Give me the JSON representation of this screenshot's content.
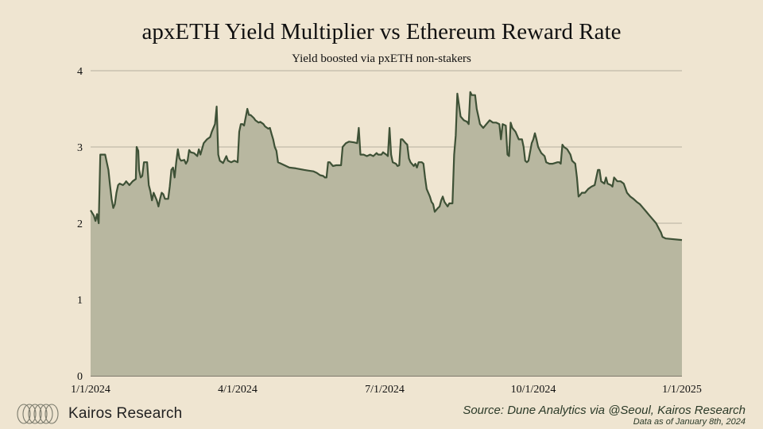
{
  "chart_data": {
    "type": "area",
    "title": "apxETH Yield Multiplier vs Ethereum Reward Rate",
    "subtitle": "Yield boosted via pxETH non-stakers",
    "xlabel": "",
    "ylabel": "",
    "ylim": [
      0,
      4
    ],
    "yticks": [
      "0",
      "1",
      "2",
      "3",
      "4"
    ],
    "xlim_days": [
      0,
      366
    ],
    "xticks": [
      {
        "day": 0,
        "label": "1/1/2024"
      },
      {
        "day": 91,
        "label": "4/1/2024"
      },
      {
        "day": 182,
        "label": "7/1/2024"
      },
      {
        "day": 274,
        "label": "10/1/2024"
      },
      {
        "day": 366,
        "label": "1/1/2025"
      }
    ],
    "grid": true,
    "line_color": "#3e5136",
    "fill_color": "#b8b7a0",
    "series": [
      {
        "name": "Yield Multiplier",
        "x_unit": "days since 1/1/2024",
        "points": [
          [
            0,
            2.17
          ],
          [
            2,
            2.1
          ],
          [
            3,
            2.03
          ],
          [
            4,
            2.12
          ],
          [
            5,
            2.0
          ],
          [
            6,
            2.9
          ],
          [
            8,
            2.9
          ],
          [
            9,
            2.9
          ],
          [
            10,
            2.8
          ],
          [
            11,
            2.7
          ],
          [
            12,
            2.5
          ],
          [
            13,
            2.32
          ],
          [
            14,
            2.2
          ],
          [
            15,
            2.25
          ],
          [
            16,
            2.4
          ],
          [
            17,
            2.5
          ],
          [
            18,
            2.52
          ],
          [
            20,
            2.5
          ],
          [
            21,
            2.52
          ],
          [
            22,
            2.55
          ],
          [
            24,
            2.5
          ],
          [
            26,
            2.55
          ],
          [
            28,
            2.58
          ],
          [
            28.5,
            3.0
          ],
          [
            29.5,
            2.95
          ],
          [
            30,
            2.7
          ],
          [
            31,
            2.6
          ],
          [
            32,
            2.62
          ],
          [
            33,
            2.8
          ],
          [
            35,
            2.8
          ],
          [
            36,
            2.5
          ],
          [
            37,
            2.42
          ],
          [
            38,
            2.3
          ],
          [
            39,
            2.4
          ],
          [
            40,
            2.35
          ],
          [
            41,
            2.3
          ],
          [
            42,
            2.22
          ],
          [
            43,
            2.32
          ],
          [
            44,
            2.4
          ],
          [
            45,
            2.38
          ],
          [
            46,
            2.32
          ],
          [
            48,
            2.32
          ],
          [
            49,
            2.48
          ],
          [
            50,
            2.7
          ],
          [
            51,
            2.73
          ],
          [
            52,
            2.6
          ],
          [
            53,
            2.8
          ],
          [
            54,
            2.97
          ],
          [
            55,
            2.85
          ],
          [
            56,
            2.82
          ],
          [
            58,
            2.83
          ],
          [
            59,
            2.78
          ],
          [
            60,
            2.82
          ],
          [
            61,
            2.96
          ],
          [
            62,
            2.93
          ],
          [
            64,
            2.92
          ],
          [
            66,
            2.88
          ],
          [
            67,
            2.97
          ],
          [
            68,
            2.9
          ],
          [
            70,
            3.05
          ],
          [
            72,
            3.1
          ],
          [
            74,
            3.13
          ],
          [
            75,
            3.2
          ],
          [
            77,
            3.3
          ],
          [
            78,
            3.53
          ],
          [
            79,
            2.9
          ],
          [
            80,
            2.82
          ],
          [
            82,
            2.79
          ],
          [
            84,
            2.88
          ],
          [
            85,
            2.82
          ],
          [
            87,
            2.8
          ],
          [
            89,
            2.82
          ],
          [
            91,
            2.8
          ],
          [
            92,
            3.2
          ],
          [
            93,
            3.3
          ],
          [
            94,
            3.3
          ],
          [
            95,
            3.28
          ],
          [
            97,
            3.5
          ],
          [
            98,
            3.42
          ],
          [
            99,
            3.42
          ],
          [
            101,
            3.38
          ],
          [
            102,
            3.35
          ],
          [
            104,
            3.32
          ],
          [
            105,
            3.33
          ],
          [
            107,
            3.3
          ],
          [
            108,
            3.27
          ],
          [
            110,
            3.24
          ],
          [
            111,
            3.25
          ],
          [
            112,
            3.17
          ],
          [
            113,
            3.1
          ],
          [
            114,
            3.0
          ],
          [
            115,
            2.95
          ],
          [
            116,
            2.8
          ],
          [
            118,
            2.78
          ],
          [
            120,
            2.76
          ],
          [
            123,
            2.73
          ],
          [
            127,
            2.72
          ],
          [
            132,
            2.7
          ],
          [
            135,
            2.69
          ],
          [
            138,
            2.68
          ],
          [
            140,
            2.66
          ],
          [
            142,
            2.63
          ],
          [
            144,
            2.62
          ],
          [
            145,
            2.6
          ],
          [
            146,
            2.6
          ],
          [
            147,
            2.8
          ],
          [
            148,
            2.8
          ],
          [
            150,
            2.75
          ],
          [
            152,
            2.76
          ],
          [
            155,
            2.76
          ],
          [
            156,
            3.0
          ],
          [
            158,
            3.05
          ],
          [
            160,
            3.07
          ],
          [
            163,
            3.06
          ],
          [
            165,
            3.05
          ],
          [
            166,
            3.25
          ],
          [
            167,
            2.9
          ],
          [
            169,
            2.9
          ],
          [
            171,
            2.88
          ],
          [
            173,
            2.9
          ],
          [
            175,
            2.88
          ],
          [
            177,
            2.92
          ],
          [
            178,
            2.9
          ],
          [
            180,
            2.9
          ],
          [
            181,
            2.93
          ],
          [
            183,
            2.9
          ],
          [
            184,
            2.88
          ],
          [
            185,
            3.25
          ],
          [
            186,
            2.9
          ],
          [
            187,
            2.8
          ],
          [
            189,
            2.78
          ],
          [
            190,
            2.75
          ],
          [
            191,
            2.76
          ],
          [
            192,
            3.1
          ],
          [
            193,
            3.1
          ],
          [
            195,
            3.05
          ],
          [
            196,
            3.03
          ],
          [
            197,
            2.85
          ],
          [
            198,
            2.8
          ],
          [
            200,
            2.75
          ],
          [
            201,
            2.78
          ],
          [
            202,
            2.73
          ],
          [
            203,
            2.8
          ],
          [
            205,
            2.8
          ],
          [
            206,
            2.78
          ],
          [
            207,
            2.6
          ],
          [
            208,
            2.45
          ],
          [
            210,
            2.35
          ],
          [
            211,
            2.28
          ],
          [
            212,
            2.25
          ],
          [
            213,
            2.15
          ],
          [
            215,
            2.2
          ],
          [
            216,
            2.22
          ],
          [
            217,
            2.3
          ],
          [
            218,
            2.35
          ],
          [
            219,
            2.28
          ],
          [
            220,
            2.25
          ],
          [
            221,
            2.22
          ],
          [
            222,
            2.26
          ],
          [
            224,
            2.26
          ],
          [
            225,
            2.9
          ],
          [
            226,
            3.15
          ],
          [
            227,
            3.7
          ],
          [
            228,
            3.55
          ],
          [
            229,
            3.4
          ],
          [
            231,
            3.35
          ],
          [
            233,
            3.33
          ],
          [
            234,
            3.3
          ],
          [
            235,
            3.72
          ],
          [
            236,
            3.68
          ],
          [
            238,
            3.68
          ],
          [
            239,
            3.5
          ],
          [
            240,
            3.4
          ],
          [
            241,
            3.3
          ],
          [
            243,
            3.25
          ],
          [
            245,
            3.3
          ],
          [
            247,
            3.35
          ],
          [
            249,
            3.32
          ],
          [
            251,
            3.32
          ],
          [
            253,
            3.3
          ],
          [
            254,
            3.1
          ],
          [
            255,
            3.3
          ],
          [
            257,
            3.28
          ],
          [
            258,
            2.9
          ],
          [
            259,
            2.88
          ],
          [
            260,
            3.32
          ],
          [
            261,
            3.25
          ],
          [
            263,
            3.2
          ],
          [
            265,
            3.1
          ],
          [
            267,
            3.1
          ],
          [
            268,
            3.0
          ],
          [
            269,
            2.82
          ],
          [
            270,
            2.8
          ],
          [
            271,
            2.82
          ],
          [
            273,
            3.05
          ],
          [
            274,
            3.1
          ],
          [
            275,
            3.18
          ],
          [
            276,
            3.1
          ],
          [
            277,
            3.0
          ],
          [
            279,
            2.92
          ],
          [
            281,
            2.88
          ],
          [
            282,
            2.8
          ],
          [
            284,
            2.78
          ],
          [
            286,
            2.78
          ],
          [
            289,
            2.8
          ],
          [
            290,
            2.8
          ],
          [
            291,
            2.78
          ],
          [
            292,
            3.03
          ],
          [
            293,
            3.0
          ],
          [
            295,
            2.97
          ],
          [
            297,
            2.9
          ],
          [
            298,
            2.82
          ],
          [
            299,
            2.8
          ],
          [
            300,
            2.78
          ],
          [
            301,
            2.6
          ],
          [
            302,
            2.35
          ],
          [
            303,
            2.37
          ],
          [
            304,
            2.4
          ],
          [
            306,
            2.4
          ],
          [
            308,
            2.45
          ],
          [
            310,
            2.48
          ],
          [
            312,
            2.5
          ],
          [
            314,
            2.7
          ],
          [
            315,
            2.7
          ],
          [
            316,
            2.55
          ],
          [
            318,
            2.52
          ],
          [
            319,
            2.6
          ],
          [
            320,
            2.52
          ],
          [
            322,
            2.5
          ],
          [
            323,
            2.48
          ],
          [
            324,
            2.6
          ],
          [
            326,
            2.55
          ],
          [
            328,
            2.55
          ],
          [
            330,
            2.52
          ],
          [
            332,
            2.4
          ],
          [
            334,
            2.35
          ],
          [
            336,
            2.32
          ],
          [
            338,
            2.28
          ],
          [
            340,
            2.25
          ],
          [
            342,
            2.2
          ],
          [
            344,
            2.15
          ],
          [
            346,
            2.1
          ],
          [
            348,
            2.05
          ],
          [
            350,
            2.0
          ],
          [
            352,
            1.92
          ],
          [
            353,
            1.88
          ],
          [
            354,
            1.82
          ],
          [
            356,
            1.8
          ],
          [
            366,
            1.78
          ]
        ]
      }
    ]
  },
  "branding": {
    "name": "Kairos Research",
    "source": "Source: Dune Analytics via @Seoul, Kairos Research",
    "as_of": "Data as of January 8th, 2024"
  }
}
